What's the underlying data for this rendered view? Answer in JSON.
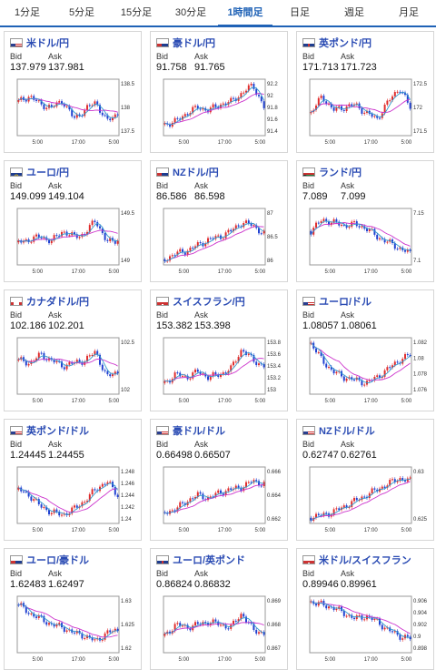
{
  "tabs": [
    {
      "label": "1分足",
      "active": false
    },
    {
      "label": "5分足",
      "active": false
    },
    {
      "label": "15分足",
      "active": false
    },
    {
      "label": "30分足",
      "active": false
    },
    {
      "label": "1時間足",
      "active": true
    },
    {
      "label": "日足",
      "active": false
    },
    {
      "label": "週足",
      "active": false
    },
    {
      "label": "月足",
      "active": false
    }
  ],
  "labels": {
    "bid": "Bid",
    "ask": "Ask"
  },
  "colors": {
    "up": "#e02a2a",
    "down": "#1f3fd1",
    "ma_long": "#cc33cc",
    "ma_short": "#3399cc",
    "accent": "#1f62b6"
  },
  "cards": [
    {
      "pair": "米ドル/円",
      "flag": "us",
      "bid": "137.979",
      "ask": "137.981",
      "yticks": [
        "138.5",
        "138",
        "137.5"
      ],
      "xticks": [
        "5:00",
        "17:00",
        "5:00"
      ],
      "trend": [
        0.6,
        0.7,
        0.55,
        0.5,
        0.62,
        0.3,
        0.45,
        0.6,
        0.25,
        0.4
      ]
    },
    {
      "pair": "豪ドル/円",
      "flag": "au",
      "bid": "91.758",
      "ask": "91.765",
      "yticks": [
        "92.2",
        "92",
        "91.8",
        "91.6",
        "91.4"
      ],
      "xticks": [
        "5:00",
        "17:00",
        "5:00"
      ],
      "trend": [
        0.2,
        0.25,
        0.4,
        0.5,
        0.45,
        0.55,
        0.6,
        0.75,
        0.9,
        0.5
      ]
    },
    {
      "pair": "英ポンド/円",
      "flag": "gb",
      "bid": "171.713",
      "ask": "171.723",
      "yticks": [
        "172.5",
        "172",
        "171.5"
      ],
      "xticks": [
        "5:00",
        "17:00",
        "5:00"
      ],
      "trend": [
        0.4,
        0.7,
        0.45,
        0.5,
        0.55,
        0.4,
        0.3,
        0.6,
        0.85,
        0.5
      ]
    },
    {
      "pair": "ユーロ/円",
      "flag": "eu",
      "bid": "149.099",
      "ask": "149.104",
      "yticks": [
        "149.5",
        "149"
      ],
      "xticks": [
        "5:00",
        "17:00",
        "5:00"
      ],
      "trend": [
        0.4,
        0.45,
        0.5,
        0.42,
        0.6,
        0.5,
        0.55,
        0.8,
        0.4,
        0.45
      ]
    },
    {
      "pair": "NZドル/円",
      "flag": "nz",
      "bid": "86.586",
      "ask": "86.598",
      "yticks": [
        "87",
        "86.5",
        "86"
      ],
      "xticks": [
        "5:00",
        "17:00",
        "5:00"
      ],
      "trend": [
        0.1,
        0.2,
        0.25,
        0.35,
        0.45,
        0.5,
        0.6,
        0.75,
        0.7,
        0.55
      ]
    },
    {
      "pair": "ランド/円",
      "flag": "za",
      "bid": "7.089",
      "ask": "7.099",
      "yticks": [
        "7.15",
        "7.1"
      ],
      "xticks": [
        "5:00",
        "17:00",
        "5:00"
      ],
      "trend": [
        0.6,
        0.8,
        0.75,
        0.7,
        0.72,
        0.65,
        0.5,
        0.4,
        0.3,
        0.2
      ]
    },
    {
      "pair": "カナダドル/円",
      "flag": "ca",
      "bid": "102.186",
      "ask": "102.201",
      "yticks": [
        "102.5",
        "102"
      ],
      "xticks": [
        "5:00",
        "17:00",
        "5:00"
      ],
      "trend": [
        0.6,
        0.55,
        0.7,
        0.6,
        0.5,
        0.55,
        0.6,
        0.75,
        0.3,
        0.4
      ]
    },
    {
      "pair": "スイスフラン/円",
      "flag": "ch",
      "bid": "153.382",
      "ask": "153.398",
      "yticks": [
        "153.8",
        "153.6",
        "153.4",
        "153.2",
        "153"
      ],
      "xticks": [
        "5:00",
        "17:00",
        "5:00"
      ],
      "trend": [
        0.2,
        0.35,
        0.3,
        0.4,
        0.3,
        0.35,
        0.45,
        0.8,
        0.6,
        0.5
      ]
    },
    {
      "pair": "ユーロ/ドル",
      "flag": "us",
      "bid": "1.08057",
      "ask": "1.08061",
      "yticks": [
        "1.082",
        "1.08",
        "1.078",
        "1.076"
      ],
      "xticks": [
        "5:00",
        "17:00",
        "5:00"
      ],
      "trend": [
        0.9,
        0.6,
        0.4,
        0.3,
        0.25,
        0.2,
        0.3,
        0.45,
        0.6,
        0.7
      ]
    },
    {
      "pair": "英ポンド/ドル",
      "flag": "us",
      "bid": "1.24445",
      "ask": "1.24455",
      "yticks": [
        "1.248",
        "1.246",
        "1.244",
        "1.242",
        "1.24"
      ],
      "xticks": [
        "5:00",
        "17:00",
        "5:00"
      ],
      "trend": [
        0.6,
        0.5,
        0.3,
        0.2,
        0.15,
        0.25,
        0.4,
        0.6,
        0.75,
        0.5
      ]
    },
    {
      "pair": "豪ドル/ドル",
      "flag": "us",
      "bid": "0.66498",
      "ask": "0.66507",
      "yticks": [
        "0.666",
        "0.664",
        "0.662"
      ],
      "xticks": [
        "5:00",
        "17:00",
        "5:00"
      ],
      "trend": [
        0.2,
        0.25,
        0.4,
        0.5,
        0.45,
        0.55,
        0.6,
        0.65,
        0.75,
        0.7
      ]
    },
    {
      "pair": "NZドル/ドル",
      "flag": "us",
      "bid": "0.62747",
      "ask": "0.62761",
      "yticks": [
        "0.63",
        "0.625"
      ],
      "xticks": [
        "5:00",
        "17:00",
        "5:00"
      ],
      "trend": [
        0.1,
        0.15,
        0.2,
        0.3,
        0.4,
        0.5,
        0.6,
        0.7,
        0.8,
        0.75
      ]
    },
    {
      "pair": "ユーロ/豪ドル",
      "flag": "au",
      "bid": "1.62483",
      "ask": "1.62497",
      "yticks": [
        "1.63",
        "1.625",
        "1.62"
      ],
      "xticks": [
        "5:00",
        "17:00",
        "5:00"
      ],
      "trend": [
        0.85,
        0.7,
        0.6,
        0.5,
        0.45,
        0.35,
        0.3,
        0.2,
        0.35,
        0.4
      ]
    },
    {
      "pair": "ユーロ/英ポンド",
      "flag": "gb",
      "bid": "0.86824",
      "ask": "0.86832",
      "yticks": [
        "0.869",
        "0.868",
        "0.867"
      ],
      "xticks": [
        "5:00",
        "17:00",
        "5:00"
      ],
      "trend": [
        0.3,
        0.5,
        0.45,
        0.5,
        0.55,
        0.5,
        0.45,
        0.7,
        0.4,
        0.35
      ]
    },
    {
      "pair": "米ドル/スイスフラン",
      "flag": "ch",
      "bid": "0.89946",
      "ask": "0.89961",
      "yticks": [
        "0.906",
        "0.904",
        "0.902",
        "0.9",
        "0.898"
      ],
      "xticks": [
        "5:00",
        "17:00",
        "5:00"
      ],
      "trend": [
        0.9,
        0.85,
        0.8,
        0.7,
        0.6,
        0.65,
        0.55,
        0.4,
        0.3,
        0.25
      ]
    }
  ]
}
